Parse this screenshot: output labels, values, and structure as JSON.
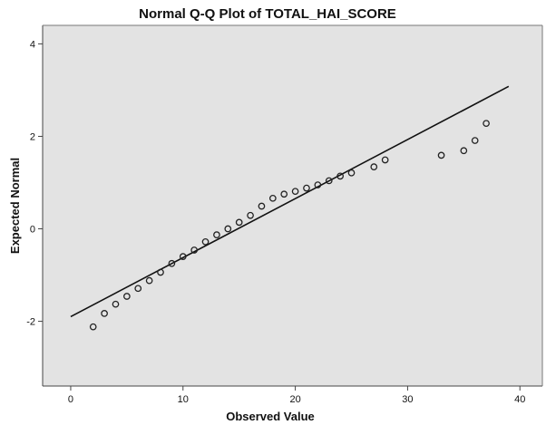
{
  "chart_data": {
    "type": "scatter",
    "title": "Normal Q-Q Plot of TOTAL_HAI_SCORE",
    "xlabel": "Observed Value",
    "ylabel": "Expected Normal",
    "xlim": [
      -2.5,
      42
    ],
    "ylim": [
      -3.4,
      4.4
    ],
    "xticks": [
      0,
      10,
      20,
      30,
      40
    ],
    "yticks": [
      -2,
      0,
      2,
      4
    ],
    "grid": false,
    "legend": "none",
    "colors": {
      "plot_background": "#e3e3e3",
      "points": "#222222",
      "reference_line": "#111111"
    },
    "reference_line": {
      "x": [
        0,
        39
      ],
      "y": [
        -1.9,
        3.08
      ]
    },
    "series": [
      {
        "x": [
          2,
          3,
          4,
          5,
          6,
          7,
          8,
          9,
          10,
          11,
          12,
          13,
          14,
          15,
          16,
          17,
          18,
          19,
          20,
          21,
          22,
          23,
          24,
          25,
          27,
          28,
          33,
          35,
          36,
          37
        ],
        "y": [
          -2.12,
          -1.83,
          -1.63,
          -1.46,
          -1.29,
          -1.12,
          -0.94,
          -0.75,
          -0.6,
          -0.46,
          -0.28,
          -0.13,
          0.0,
          0.14,
          0.29,
          0.49,
          0.66,
          0.75,
          0.81,
          0.88,
          0.95,
          1.04,
          1.14,
          1.21,
          1.34,
          1.49,
          1.59,
          1.69,
          1.91,
          2.28
        ]
      }
    ]
  }
}
